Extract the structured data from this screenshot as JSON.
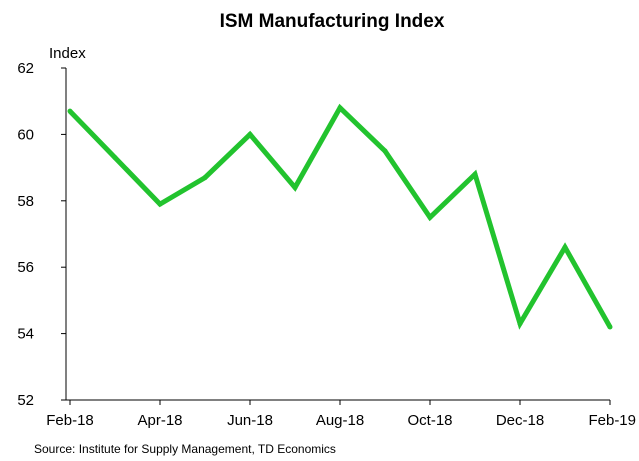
{
  "chart_data": {
    "type": "line",
    "title": "ISM Manufacturing Index",
    "ylabel": "Index",
    "xlabel": "",
    "ylim": [
      52,
      62
    ],
    "y_ticks": [
      52,
      54,
      56,
      58,
      60,
      62
    ],
    "x": [
      "Feb-18",
      "Mar-18",
      "Apr-18",
      "May-18",
      "Jun-18",
      "Jul-18",
      "Aug-18",
      "Sep-18",
      "Oct-18",
      "Nov-18",
      "Dec-18",
      "Jan-19",
      "Feb-19"
    ],
    "x_tick_labels": [
      "Feb-18",
      "Apr-18",
      "Jun-18",
      "Aug-18",
      "Oct-18",
      "Dec-18",
      "Feb-19"
    ],
    "series": [
      {
        "values": [
          60.7,
          59.3,
          57.9,
          58.7,
          60.0,
          58.4,
          60.8,
          59.5,
          57.5,
          58.8,
          54.3,
          56.6,
          54.2
        ],
        "color": "#22c32e"
      }
    ],
    "grid": false,
    "legend": "none",
    "source": "Source: Institute for Supply Management, TD Economics"
  }
}
